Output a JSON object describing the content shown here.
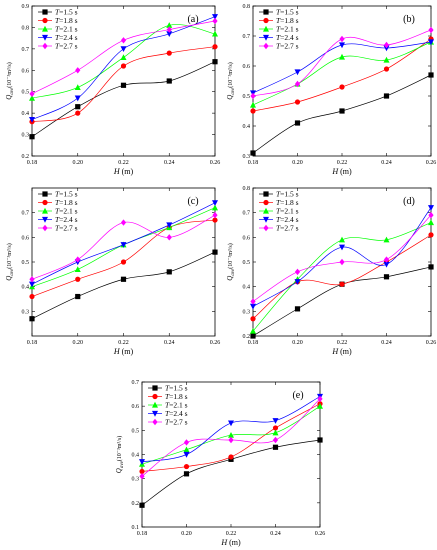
{
  "chart_data": [
    {
      "type": "line",
      "panel_label": "(a)",
      "xlabel_italic": "H",
      "xlabel_rest": " (m)",
      "ylabel_main": "Q",
      "ylabel_sub": "ave",
      "ylabel_unit": "(10⁻³m³/s)",
      "x": [
        0.18,
        0.2,
        0.22,
        0.24,
        0.26
      ],
      "x_ticks": [
        "0.18",
        "0.20",
        "0.22",
        "0.24",
        "0.26"
      ],
      "ylim": [
        0.2,
        0.9
      ],
      "y_ticks": [
        "0.2",
        "0.3",
        "0.4",
        "0.5",
        "0.6",
        "0.7",
        "0.8",
        "0.9"
      ],
      "series": [
        {
          "name": "1.5 s",
          "color": "#000000",
          "marker": "square",
          "values": [
            0.29,
            0.43,
            0.53,
            0.55,
            0.64
          ]
        },
        {
          "name": "1.8 s",
          "color": "#ff0000",
          "marker": "circle",
          "values": [
            0.36,
            0.4,
            0.62,
            0.68,
            0.71
          ]
        },
        {
          "name": "2.1 s",
          "color": "#00ff00",
          "marker": "triangle-up",
          "values": [
            0.47,
            0.52,
            0.66,
            0.81,
            0.77
          ]
        },
        {
          "name": "2.4 s",
          "color": "#0000ff",
          "marker": "triangle-down",
          "values": [
            0.37,
            0.47,
            0.7,
            0.77,
            0.85
          ]
        },
        {
          "name": "2.7 s",
          "color": "#ff00ff",
          "marker": "diamond",
          "values": [
            0.49,
            0.6,
            0.74,
            0.79,
            0.83
          ]
        }
      ]
    },
    {
      "type": "line",
      "panel_label": "(b)",
      "xlabel_italic": "H",
      "xlabel_rest": " (m)",
      "ylabel_main": "Q",
      "ylabel_sub": "ave",
      "ylabel_unit": "(10⁻³m³/s)",
      "x": [
        0.18,
        0.2,
        0.22,
        0.24,
        0.26
      ],
      "x_ticks": [
        "0.18",
        "0.20",
        "0.22",
        "0.24",
        "0.26"
      ],
      "ylim": [
        0.3,
        0.8
      ],
      "y_ticks": [
        "0.3",
        "0.4",
        "0.5",
        "0.6",
        "0.7",
        "0.8"
      ],
      "series": [
        {
          "name": "1.5 s",
          "color": "#000000",
          "marker": "square",
          "values": [
            0.31,
            0.41,
            0.45,
            0.5,
            0.57
          ]
        },
        {
          "name": "1.8 s",
          "color": "#ff0000",
          "marker": "circle",
          "values": [
            0.45,
            0.48,
            0.53,
            0.59,
            0.69
          ]
        },
        {
          "name": "2.1 s",
          "color": "#00ff00",
          "marker": "triangle-up",
          "values": [
            0.47,
            0.54,
            0.63,
            0.62,
            0.68
          ]
        },
        {
          "name": "2.4 s",
          "color": "#0000ff",
          "marker": "triangle-down",
          "values": [
            0.51,
            0.58,
            0.67,
            0.66,
            0.68
          ]
        },
        {
          "name": "2.7 s",
          "color": "#ff00ff",
          "marker": "diamond",
          "values": [
            0.5,
            0.54,
            0.69,
            0.67,
            0.72
          ]
        }
      ]
    },
    {
      "type": "line",
      "panel_label": "(c)",
      "xlabel_italic": "H",
      "xlabel_rest": " (m)",
      "ylabel_main": "Q",
      "ylabel_sub": "ave",
      "ylabel_unit": "(10⁻³m³/s)",
      "x": [
        0.18,
        0.2,
        0.22,
        0.24,
        0.26
      ],
      "x_ticks": [
        "0.18",
        "0.20",
        "0.22",
        "0.24",
        "0.26"
      ],
      "ylim": [
        0.2,
        0.8
      ],
      "y_ticks": [
        "0.3",
        "0.4",
        "0.5",
        "0.6",
        "0.7"
      ],
      "series": [
        {
          "name": "1.5 s",
          "color": "#000000",
          "marker": "square",
          "values": [
            0.27,
            0.36,
            0.43,
            0.46,
            0.54
          ]
        },
        {
          "name": "1.8 s",
          "color": "#ff0000",
          "marker": "circle",
          "values": [
            0.36,
            0.43,
            0.5,
            0.64,
            0.67
          ]
        },
        {
          "name": "2.1 s",
          "color": "#00ff00",
          "marker": "triangle-up",
          "values": [
            0.4,
            0.47,
            0.57,
            0.64,
            0.72
          ]
        },
        {
          "name": "2.4 s",
          "color": "#0000ff",
          "marker": "triangle-down",
          "values": [
            0.41,
            0.5,
            0.57,
            0.65,
            0.74
          ]
        },
        {
          "name": "2.7 s",
          "color": "#ff00ff",
          "marker": "diamond",
          "values": [
            0.43,
            0.51,
            0.66,
            0.6,
            0.69
          ]
        }
      ]
    },
    {
      "type": "line",
      "panel_label": "(d)",
      "xlabel_italic": "H",
      "xlabel_rest": " (m)",
      "ylabel_main": "Q",
      "ylabel_sub": "ave",
      "ylabel_unit": "(10⁻³m³/s)",
      "x": [
        0.18,
        0.2,
        0.22,
        0.24,
        0.26
      ],
      "x_ticks": [
        "0.18",
        "0.20",
        "0.22",
        "0.24",
        "0.26"
      ],
      "ylim": [
        0.2,
        0.8
      ],
      "y_ticks": [
        "0.2",
        "0.3",
        "0.4",
        "0.5",
        "0.6",
        "0.7",
        "0.8"
      ],
      "series": [
        {
          "name": "1.5 s",
          "color": "#000000",
          "marker": "square",
          "values": [
            0.2,
            0.31,
            0.41,
            0.44,
            0.48
          ]
        },
        {
          "name": "1.8 s",
          "color": "#ff0000",
          "marker": "circle",
          "values": [
            0.27,
            0.42,
            0.41,
            0.5,
            0.61
          ]
        },
        {
          "name": "2.1 s",
          "color": "#00ff00",
          "marker": "triangle-up",
          "values": [
            0.22,
            0.43,
            0.59,
            0.59,
            0.66
          ]
        },
        {
          "name": "2.4 s",
          "color": "#0000ff",
          "marker": "triangle-down",
          "values": [
            0.32,
            0.42,
            0.56,
            0.49,
            0.72
          ]
        },
        {
          "name": "2.7 s",
          "color": "#ff00ff",
          "marker": "diamond",
          "values": [
            0.34,
            0.46,
            0.5,
            0.51,
            0.69
          ]
        }
      ]
    },
    {
      "type": "line",
      "panel_label": "(e)",
      "xlabel_italic": "H",
      "xlabel_rest": " (m)",
      "ylabel_main": "Q",
      "ylabel_sub": "ave",
      "ylabel_unit": "(10⁻³m³/s)",
      "x": [
        0.18,
        0.2,
        0.22,
        0.24,
        0.26
      ],
      "x_ticks": [
        "0.18",
        "0.20",
        "0.22",
        "0.24",
        "0.26"
      ],
      "ylim": [
        0.1,
        0.7
      ],
      "y_ticks": [
        "0.1",
        "0.2",
        "0.3",
        "0.4",
        "0.5",
        "0.6",
        "0.7"
      ],
      "series": [
        {
          "name": "1.5 s",
          "color": "#000000",
          "marker": "square",
          "values": [
            0.19,
            0.32,
            0.38,
            0.43,
            0.46
          ]
        },
        {
          "name": "1.8 s",
          "color": "#ff0000",
          "marker": "circle",
          "values": [
            0.33,
            0.35,
            0.39,
            0.51,
            0.61
          ]
        },
        {
          "name": "2.1 s",
          "color": "#00ff00",
          "marker": "triangle-up",
          "values": [
            0.36,
            0.42,
            0.48,
            0.49,
            0.6
          ]
        },
        {
          "name": "2.4 s",
          "color": "#0000ff",
          "marker": "triangle-down",
          "values": [
            0.37,
            0.4,
            0.53,
            0.54,
            0.64
          ]
        },
        {
          "name": "2.7 s",
          "color": "#ff00ff",
          "marker": "diamond",
          "values": [
            0.31,
            0.45,
            0.46,
            0.46,
            0.63
          ]
        }
      ]
    }
  ],
  "legend_symbol": "T",
  "legend_eq": "="
}
